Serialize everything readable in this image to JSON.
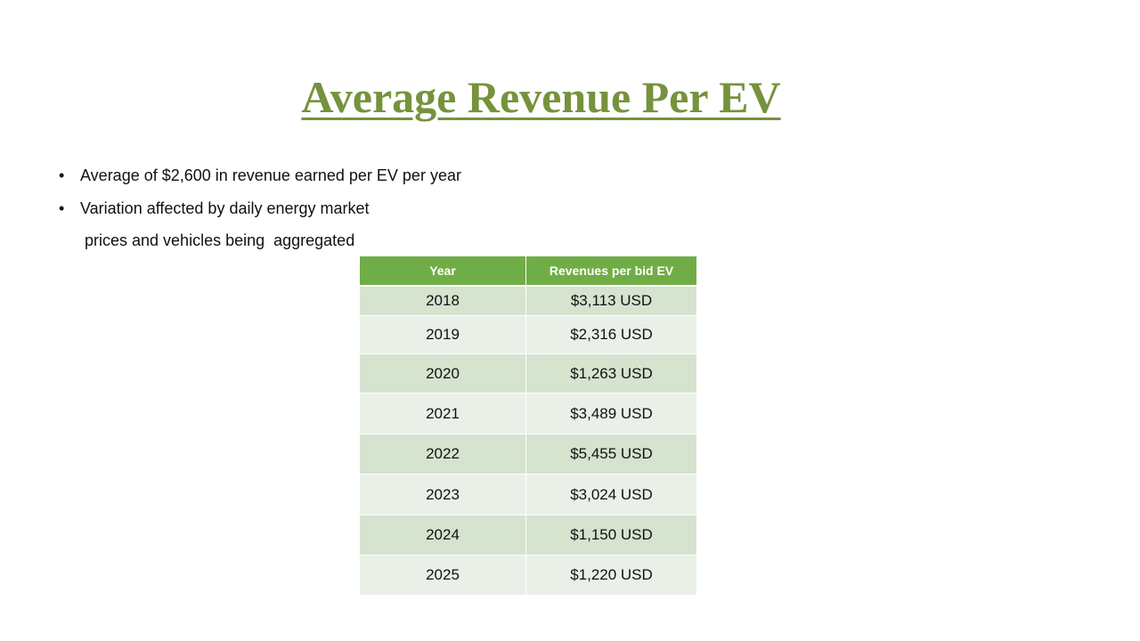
{
  "title": "Average Revenue Per EV",
  "bullets": [
    "Average of $2,600 in revenue earned per EV per year",
    "Variation affected by daily energy market"
  ],
  "bullet_continuation": "prices and vehicles being  aggregated",
  "table": {
    "header": [
      "Year",
      "Revenues per bid EV"
    ],
    "rows": [
      [
        "2018",
        "$3,113 USD"
      ],
      [
        "2019",
        "$2,316 USD"
      ],
      [
        "2020",
        "$1,263 USD"
      ],
      [
        "2021",
        "$3,489 USD"
      ],
      [
        "2022",
        "$5,455 USD"
      ],
      [
        "2023",
        "$3,024 USD"
      ],
      [
        "2024",
        "$1,150 USD"
      ],
      [
        "2025",
        "$1,220 USD"
      ]
    ]
  }
}
